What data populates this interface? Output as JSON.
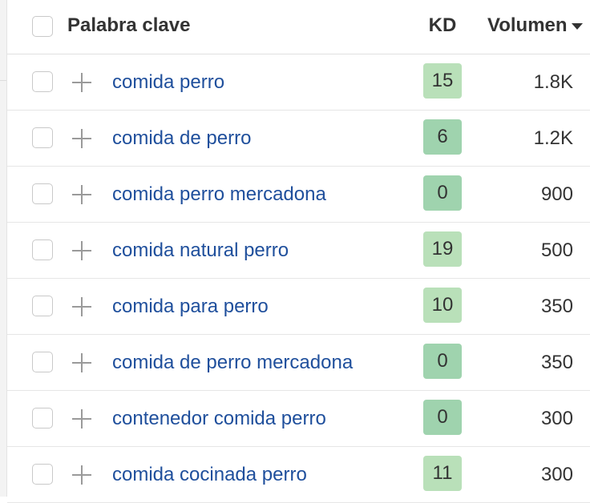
{
  "table": {
    "headers": {
      "keyword": "Palabra clave",
      "kd": "KD",
      "volume": "Volumen"
    },
    "sort": {
      "column": "volume",
      "direction": "desc",
      "icon": "sort-down-icon"
    },
    "colors": {
      "keyword_link": "#1f4f9c",
      "kd_low": "#9fd3ae",
      "kd_mid": "#b9e0b9"
    },
    "rows": [
      {
        "keyword": "comida perro",
        "kd": "15",
        "volume": "1.8K",
        "kd_color": "#b9e0b9"
      },
      {
        "keyword": "comida de perro",
        "kd": "6",
        "volume": "1.2K",
        "kd_color": "#9fd3ae"
      },
      {
        "keyword": "comida perro mercadona",
        "kd": "0",
        "volume": "900",
        "kd_color": "#9fd3ae"
      },
      {
        "keyword": "comida natural perro",
        "kd": "19",
        "volume": "500",
        "kd_color": "#b9e0b9"
      },
      {
        "keyword": "comida para perro",
        "kd": "10",
        "volume": "350",
        "kd_color": "#b9e0b9"
      },
      {
        "keyword": "comida de perro mercadona",
        "kd": "0",
        "volume": "350",
        "kd_color": "#9fd3ae"
      },
      {
        "keyword": "contenedor comida perro",
        "kd": "0",
        "volume": "300",
        "kd_color": "#9fd3ae"
      },
      {
        "keyword": "comida cocinada perro",
        "kd": "11",
        "volume": "300",
        "kd_color": "#b9e0b9"
      }
    ]
  }
}
